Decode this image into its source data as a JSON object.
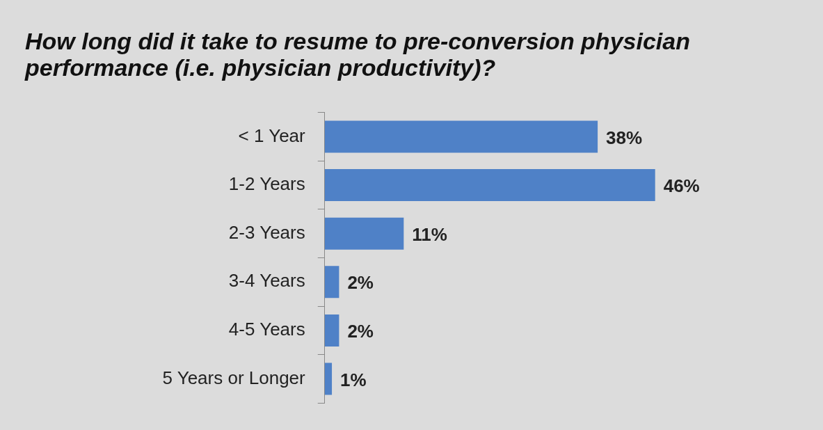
{
  "chart_data": {
    "type": "bar",
    "orientation": "horizontal",
    "title": "How long did it take to resume to pre-conversion physician performance (i.e. physician productivity)?",
    "categories": [
      "< 1 Year",
      "1-2 Years",
      "2-3 Years",
      "3-4 Years",
      "4-5 Years",
      "5 Years or Longer"
    ],
    "values": [
      38,
      46,
      11,
      2,
      2,
      1
    ],
    "value_labels": [
      "38%",
      "46%",
      "11%",
      "2%",
      "2%",
      "1%"
    ],
    "color": "#4f81c7",
    "legend": false
  }
}
